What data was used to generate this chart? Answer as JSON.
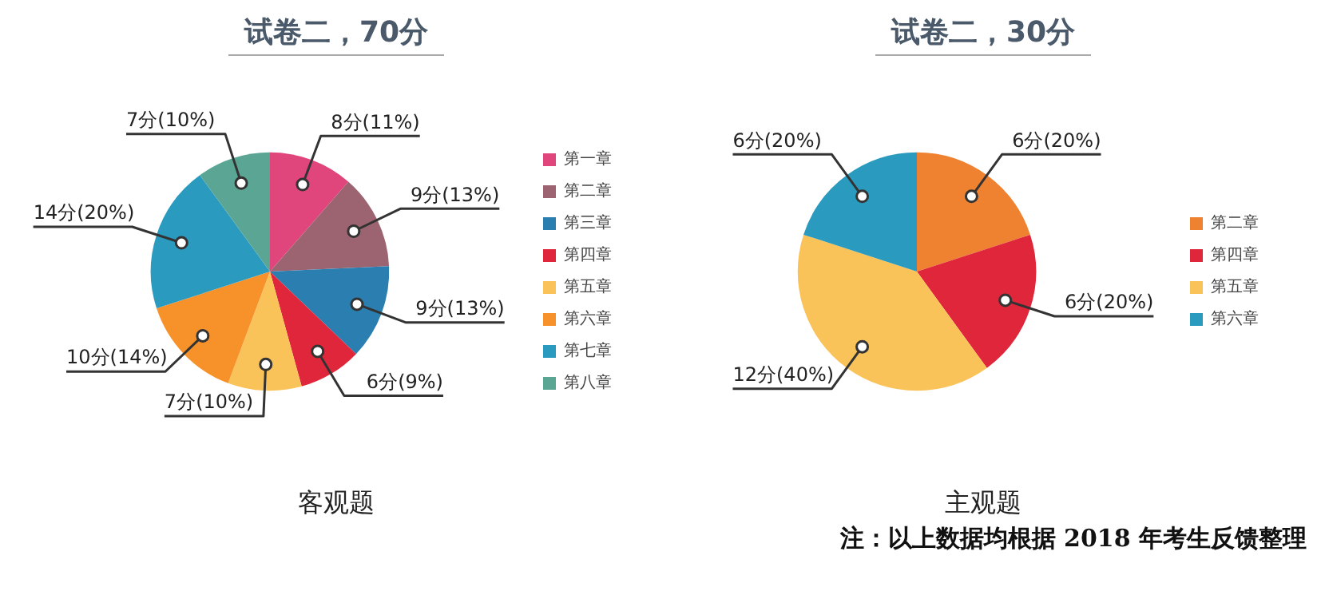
{
  "chart_data": [
    {
      "type": "pie",
      "title": "试卷二，70分",
      "xlabel": "客观题",
      "categories": [
        "第一章",
        "第二章",
        "第三章",
        "第四章",
        "第五章",
        "第六章",
        "第七章",
        "第八章"
      ],
      "values": [
        8,
        9,
        9,
        6,
        7,
        10,
        14,
        7
      ],
      "value_labels": [
        "8分(11%)",
        "9分(13%)",
        "9分(13%)",
        "6分(9%)",
        "7分(10%)",
        "10分(14%)",
        "14分(20%)",
        "7分(10%)"
      ],
      "colors": [
        "#e0457b",
        "#9b6470",
        "#2a7fb0",
        "#e0263a",
        "#fac35a",
        "#f7922a",
        "#2a9bbf",
        "#5aa594"
      ],
      "legend": "right"
    },
    {
      "type": "pie",
      "title": "试卷二，30分",
      "xlabel": "主观题",
      "categories": [
        "第二章",
        "第四章",
        "第五章",
        "第六章"
      ],
      "values": [
        6,
        6,
        12,
        6
      ],
      "value_labels": [
        "6分(20%)",
        "6分(20%)",
        "12分(40%)",
        "6分(20%)"
      ],
      "colors": [
        "#ef8231",
        "#e0263a",
        "#fac35a",
        "#2a9bbf"
      ],
      "legend": "right",
      "annotations": [
        "注：以上数据均根据 2018 年考生反馈整理"
      ]
    }
  ]
}
